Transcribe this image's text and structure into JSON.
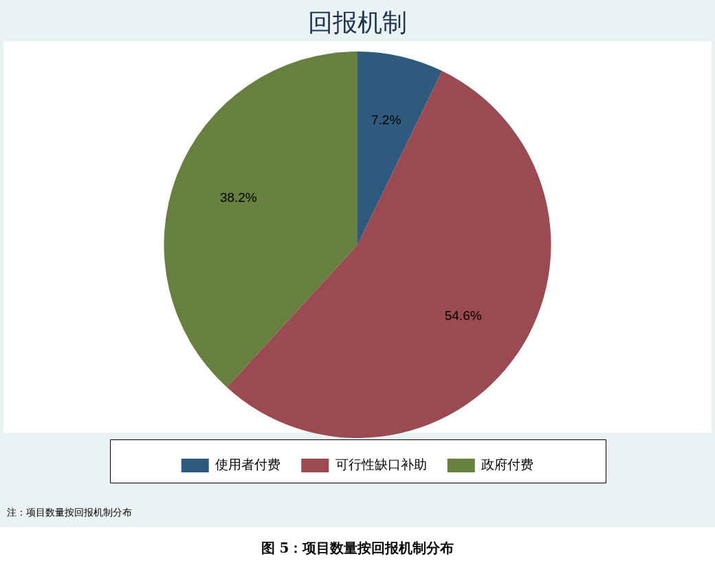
{
  "chart_data": {
    "type": "pie",
    "title": "回报机制",
    "categories": [
      "使用者付费",
      "可行性缺口补助",
      "政府付费"
    ],
    "values": [
      7.2,
      54.6,
      38.2
    ],
    "colors": [
      "#30597e",
      "#9a4a50",
      "#67803f"
    ],
    "value_labels": [
      "7.2%",
      "54.6%",
      "38.2%"
    ],
    "legend": "bottom",
    "annotations": [
      "注：项目数量按回报机制分布",
      "图 5：项目数量按回报机制分布"
    ]
  }
}
